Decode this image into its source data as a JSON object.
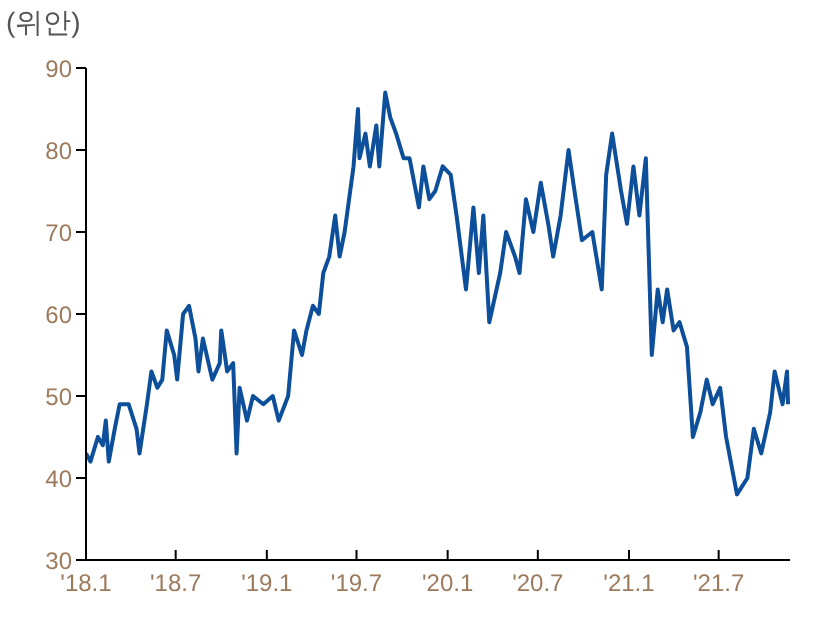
{
  "chart_data": {
    "type": "line",
    "ylabel": "(위안)",
    "color": "#0d4f9a",
    "x": [
      "2018-01-01",
      "2018-01-10",
      "2018-01-25",
      "2018-02-04",
      "2018-02-10",
      "2018-02-16",
      "2018-02-28",
      "2018-03-10",
      "2018-03-28",
      "2018-04-13",
      "2018-04-19",
      "2018-05-04",
      "2018-05-13",
      "2018-05-25",
      "2018-06-04",
      "2018-06-13",
      "2018-06-28",
      "2018-07-04",
      "2018-07-16",
      "2018-07-28",
      "2018-08-10",
      "2018-08-16",
      "2018-08-25",
      "2018-09-13",
      "2018-09-28",
      "2018-10-01",
      "2018-10-13",
      "2018-10-25",
      "2018-11-01",
      "2018-11-07",
      "2018-11-22",
      "2018-12-04",
      "2018-12-25",
      "2019-01-13",
      "2019-01-25",
      "2019-02-13",
      "2019-02-25",
      "2019-03-13",
      "2019-03-22",
      "2019-04-04",
      "2019-04-16",
      "2019-04-25",
      "2019-05-07",
      "2019-05-19",
      "2019-05-28",
      "2019-06-07",
      "2019-06-16",
      "2019-06-25",
      "2019-07-04",
      "2019-07-07",
      "2019-07-19",
      "2019-07-28",
      "2019-08-10",
      "2019-08-16",
      "2019-08-28",
      "2019-09-07",
      "2019-09-19",
      "2019-10-04",
      "2019-10-16",
      "2019-11-04",
      "2019-11-13",
      "2019-11-25",
      "2019-12-07",
      "2019-12-22",
      "2020-01-07",
      "2020-01-19",
      "2020-02-07",
      "2020-02-22",
      "2020-03-04",
      "2020-03-13",
      "2020-03-25",
      "2020-04-16",
      "2020-04-28",
      "2020-05-16",
      "2020-05-25",
      "2020-06-07",
      "2020-06-22",
      "2020-07-07",
      "2020-07-22",
      "2020-08-01",
      "2020-08-16",
      "2020-09-01",
      "2020-09-13",
      "2020-09-28",
      "2020-10-19",
      "2020-11-07",
      "2020-11-16",
      "2020-11-28",
      "2020-12-16",
      "2020-12-28",
      "2021-01-10",
      "2021-01-22",
      "2021-02-04",
      "2021-02-16",
      "2021-02-28",
      "2021-03-10",
      "2021-03-19",
      "2021-04-01",
      "2021-04-13",
      "2021-04-28",
      "2021-05-10",
      "2021-05-25",
      "2021-06-07",
      "2021-06-19",
      "2021-07-04",
      "2021-07-16",
      "2021-08-07",
      "2021-08-28",
      "2021-09-10",
      "2021-09-25",
      "2021-10-13",
      "2021-10-22",
      "2021-11-07",
      "2021-11-16",
      "2021-11-18"
    ],
    "values": [
      43,
      42,
      45,
      44,
      47,
      42,
      46,
      49,
      49,
      46,
      43,
      49,
      53,
      51,
      52,
      58,
      55,
      52,
      60,
      61,
      57,
      53,
      57,
      52,
      54,
      58,
      53,
      54,
      43,
      51,
      47,
      50,
      49,
      50,
      47,
      50,
      58,
      55,
      58,
      61,
      60,
      65,
      67,
      72,
      67,
      70,
      74,
      78,
      85,
      79,
      82,
      78,
      83,
      78,
      87,
      84,
      82,
      79,
      79,
      73,
      78,
      74,
      75,
      78,
      77,
      72,
      63,
      73,
      65,
      72,
      59,
      65,
      70,
      67,
      65,
      74,
      70,
      76,
      71,
      67,
      72,
      80,
      75,
      69,
      70,
      63,
      77,
      82,
      75,
      71,
      78,
      72,
      79,
      55,
      63,
      59,
      63,
      58,
      59,
      56,
      45,
      48,
      52,
      49,
      51,
      45,
      38,
      40,
      46,
      43,
      48,
      53,
      49,
      53,
      49
    ],
    "xlim": [
      "2018-01-01",
      "2021-11-22"
    ],
    "xticks": [
      {
        "value": "2018-01-01",
        "label": "'18.1"
      },
      {
        "value": "2018-07-01",
        "label": "'18.7"
      },
      {
        "value": "2019-01-01",
        "label": "'19.1"
      },
      {
        "value": "2019-07-01",
        "label": "'19.7"
      },
      {
        "value": "2020-01-01",
        "label": "'20.1"
      },
      {
        "value": "2020-07-01",
        "label": "'20.7"
      },
      {
        "value": "2021-01-01",
        "label": "'21.1"
      },
      {
        "value": "2021-07-01",
        "label": "'21.7"
      }
    ],
    "ylim": [
      30,
      90
    ],
    "yticks": [
      30,
      40,
      50,
      60,
      70,
      80,
      90
    ]
  }
}
